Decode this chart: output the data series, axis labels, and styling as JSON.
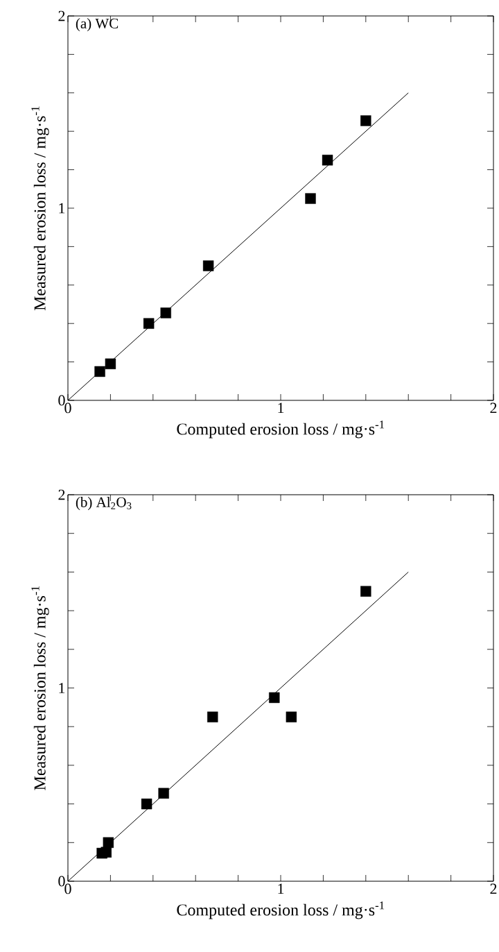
{
  "chart_data": [
    {
      "type": "scatter",
      "title": "(a) WC",
      "xlabel": "Computed erosion loss / mg·s$^{-1}$",
      "ylabel": "Measured erosion loss / mg·s$^{-1}$",
      "xlim": [
        0,
        2
      ],
      "ylim": [
        0,
        2
      ],
      "xticks": [
        0,
        {
          "value": 0.2,
          "label": null
        },
        {
          "value": 0.4,
          "label": null
        },
        {
          "value": 0.6,
          "label": null
        },
        {
          "value": 0.8,
          "label": null
        },
        1,
        {
          "value": 1.2,
          "label": null
        },
        {
          "value": 1.4,
          "label": null
        },
        {
          "value": 1.6,
          "label": null
        },
        {
          "value": 1.8,
          "label": null
        },
        2
      ],
      "yticks": [
        0,
        {
          "value": 0.2,
          "label": null
        },
        {
          "value": 0.4,
          "label": null
        },
        {
          "value": 0.6,
          "label": null
        },
        {
          "value": 0.8,
          "label": null
        },
        1,
        {
          "value": 1.2,
          "label": null
        },
        {
          "value": 1.4,
          "label": null
        },
        {
          "value": 1.6,
          "label": null
        },
        {
          "value": 1.8,
          "label": null
        },
        2
      ],
      "series": [
        {
          "marker": "square",
          "color": "#000000",
          "x": [
            0.15,
            0.2,
            0.38,
            0.46,
            0.66,
            1.14,
            1.22,
            1.4
          ],
          "values": [
            0.15,
            0.19,
            0.4,
            0.455,
            0.7,
            1.05,
            1.25,
            1.455
          ]
        },
        {
          "type": "line",
          "color": "#000000",
          "x": [
            0,
            1.6
          ],
          "values": [
            0,
            1.6
          ]
        }
      ]
    },
    {
      "type": "scatter",
      "title": "(b) Al$_{2}$O$_{3}$",
      "xlabel": "Computed erosion loss / mg·s$^{-1}$",
      "ylabel": "Measured erosion loss / mg·s$^{-1}$",
      "xlim": [
        0,
        2
      ],
      "ylim": [
        0,
        2
      ],
      "xticks": [
        0,
        {
          "value": 0.2,
          "label": null
        },
        {
          "value": 0.4,
          "label": null
        },
        {
          "value": 0.6,
          "label": null
        },
        {
          "value": 0.8,
          "label": null
        },
        1,
        {
          "value": 1.2,
          "label": null
        },
        {
          "value": 1.4,
          "label": null
        },
        {
          "value": 1.6,
          "label": null
        },
        {
          "value": 1.8,
          "label": null
        },
        2
      ],
      "yticks": [
        0,
        {
          "value": 0.2,
          "label": null
        },
        {
          "value": 0.4,
          "label": null
        },
        {
          "value": 0.6,
          "label": null
        },
        {
          "value": 0.8,
          "label": null
        },
        1,
        {
          "value": 1.2,
          "label": null
        },
        {
          "value": 1.4,
          "label": null
        },
        {
          "value": 1.6,
          "label": null
        },
        {
          "value": 1.8,
          "label": null
        },
        2
      ],
      "series": [
        {
          "marker": "square",
          "color": "#000000",
          "x": [
            0.16,
            0.18,
            0.19,
            0.37,
            0.45,
            0.68,
            0.97,
            1.05,
            1.4
          ],
          "values": [
            0.145,
            0.15,
            0.2,
            0.4,
            0.455,
            0.85,
            0.95,
            0.85,
            1.5
          ]
        },
        {
          "type": "line",
          "color": "#000000",
          "x": [
            0,
            1.6
          ],
          "values": [
            0,
            1.6
          ]
        }
      ]
    }
  ]
}
